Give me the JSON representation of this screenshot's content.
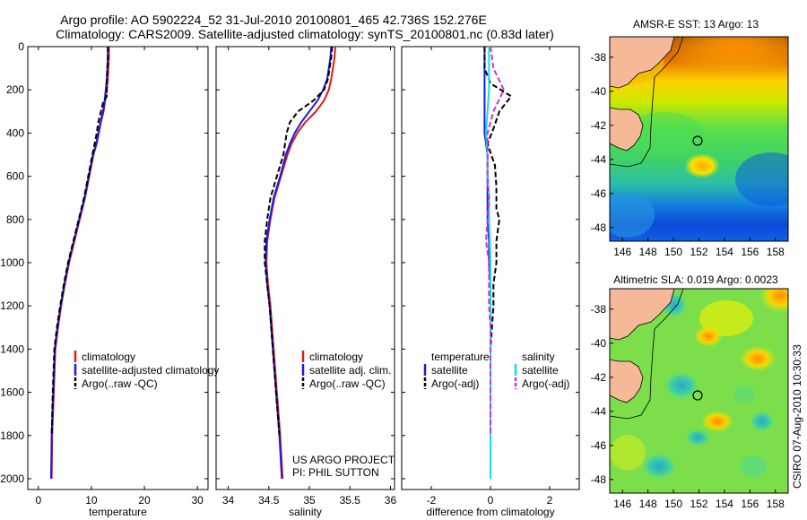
{
  "figure": {
    "title_line1": "Argo profile: AO 5902224_52 31-Jul-2010 20100801_465 42.736S 152.276E",
    "title_line2": "Climatology: CARS2009. Satellite-adjusted climatology: synTS_20100801.nc (0.83d later)",
    "side_stamp": "CSIRO 07-Aug-2010 10:30:33",
    "project_line1": "US ARGO PROJECT",
    "project_line2": "PI: PHIL SUTTON"
  },
  "colors": {
    "climatology": "#e01818",
    "satellite": "#1a1ae0",
    "argo": "#000000",
    "sal_satellite": "#14dcee",
    "sal_argo": "#cc33cc"
  },
  "chart_data": [
    {
      "type": "line",
      "xlabel": "temperature",
      "ylabel": "",
      "xlim": [
        -2,
        32
      ],
      "ylim": [
        0,
        2050
      ],
      "y_reversed": true,
      "xticks": [
        0,
        10,
        20,
        30
      ],
      "yticks": [
        0,
        200,
        400,
        600,
        800,
        1000,
        1200,
        1400,
        1600,
        1800,
        2000
      ],
      "legend": [
        "climatology",
        "satellite-adjusted climatology",
        "Argo(..raw -QC)"
      ],
      "series": [
        {
          "name": "climatology",
          "style": "solid",
          "color_key": "climatology",
          "x": [
            13.3,
            13.3,
            13.2,
            13.1,
            12.9,
            12.6,
            12.3,
            11.8,
            11.4,
            11.0,
            10.4,
            9.6,
            8.8,
            7.8,
            6.8,
            5.8,
            5.0,
            4.3,
            3.7,
            3.2,
            2.9,
            2.6,
            2.5
          ],
          "y": [
            0,
            50,
            100,
            150,
            200,
            250,
            300,
            350,
            400,
            450,
            500,
            600,
            700,
            800,
            900,
            1000,
            1100,
            1200,
            1300,
            1400,
            1600,
            1800,
            2000
          ]
        },
        {
          "name": "satellite-adjusted climatology",
          "style": "solid",
          "color_key": "satellite",
          "x": [
            13.1,
            13.1,
            13.0,
            12.9,
            12.7,
            12.5,
            12.2,
            11.7,
            11.3,
            10.9,
            10.3,
            9.5,
            8.7,
            7.7,
            6.7,
            5.7,
            4.9,
            4.2,
            3.6,
            3.1,
            2.8,
            2.5,
            2.4
          ],
          "y": [
            0,
            50,
            100,
            150,
            200,
            250,
            300,
            350,
            400,
            450,
            500,
            600,
            700,
            800,
            900,
            1000,
            1100,
            1200,
            1300,
            1400,
            1600,
            1800,
            2000
          ]
        },
        {
          "name": "Argo(..raw -QC)",
          "style": "dashed",
          "color_key": "argo",
          "x": [
            13.1,
            13.1,
            13.0,
            12.9,
            12.9,
            12.2,
            11.8,
            11.3,
            11.0,
            10.6,
            10.2,
            9.4,
            8.6,
            7.6,
            6.6,
            5.6,
            4.8,
            4.1,
            3.5,
            3.0,
            2.7,
            2.5
          ],
          "y": [
            0,
            50,
            100,
            150,
            230,
            260,
            300,
            350,
            400,
            450,
            500,
            600,
            700,
            800,
            900,
            1000,
            1100,
            1200,
            1300,
            1400,
            1600,
            1800
          ]
        }
      ]
    },
    {
      "type": "line",
      "xlabel": "salinity",
      "ylabel": "",
      "xlim": [
        33.85,
        36.05
      ],
      "ylim": [
        0,
        2050
      ],
      "y_reversed": true,
      "xticks": [
        34,
        34.5,
        35,
        35.5,
        36
      ],
      "yticks": [
        0,
        200,
        400,
        600,
        800,
        1000,
        1200,
        1400,
        1600,
        1800,
        2000
      ],
      "legend": [
        "climatology",
        "satellite adj. clim.",
        "Argo(..raw -QC)"
      ],
      "series": [
        {
          "name": "climatology",
          "style": "solid",
          "color_key": "climatology",
          "x": [
            35.32,
            35.31,
            35.29,
            35.27,
            35.24,
            35.18,
            35.08,
            34.95,
            34.85,
            34.78,
            34.73,
            34.65,
            34.57,
            34.52,
            34.48,
            34.47,
            34.49,
            34.52,
            34.54,
            34.56,
            34.6,
            34.64,
            34.67
          ],
          "y": [
            0,
            50,
            100,
            150,
            200,
            250,
            300,
            350,
            400,
            450,
            500,
            600,
            700,
            800,
            900,
            1000,
            1100,
            1200,
            1300,
            1400,
            1600,
            1800,
            2000
          ]
        },
        {
          "name": "satellite adj. clim.",
          "style": "solid",
          "color_key": "satellite",
          "x": [
            35.27,
            35.26,
            35.24,
            35.22,
            35.17,
            35.1,
            35.0,
            34.9,
            34.82,
            34.76,
            34.71,
            34.64,
            34.56,
            34.51,
            34.47,
            34.46,
            34.48,
            34.51,
            34.53,
            34.55,
            34.59,
            34.63,
            34.66
          ],
          "y": [
            0,
            50,
            100,
            150,
            200,
            250,
            300,
            350,
            400,
            450,
            500,
            600,
            700,
            800,
            900,
            1000,
            1100,
            1200,
            1300,
            1400,
            1600,
            1800,
            2000
          ]
        },
        {
          "name": "Argo(..raw -QC)",
          "style": "dashed",
          "color_key": "argo",
          "x": [
            35.28,
            35.27,
            35.25,
            35.23,
            35.18,
            35.05,
            34.86,
            34.76,
            34.72,
            34.7,
            34.68,
            34.6,
            34.52,
            34.48,
            34.45,
            34.45,
            34.48,
            34.51,
            34.53,
            34.55,
            34.59,
            34.63
          ],
          "y": [
            0,
            50,
            100,
            150,
            200,
            250,
            300,
            350,
            400,
            450,
            500,
            600,
            700,
            800,
            900,
            1000,
            1100,
            1200,
            1300,
            1400,
            1600,
            1800
          ]
        }
      ]
    },
    {
      "type": "line",
      "xlabel": "difference from climatology",
      "ylabel": "",
      "xlim": [
        -3.0,
        3.0
      ],
      "ylim": [
        0,
        2050
      ],
      "y_reversed": true,
      "xticks": [
        -2,
        0,
        2
      ],
      "yticks": [
        0,
        200,
        400,
        600,
        800,
        1000,
        1200,
        1400,
        1600,
        1800,
        2000
      ],
      "legend_temperature_header": "temperature",
      "legend_salinity_header": "salinity",
      "legend_temperature": [
        "satellite",
        "Argo(-adj)"
      ],
      "legend_salinity": [
        "satellite",
        "Argo(-adj)"
      ],
      "series": [
        {
          "name": "temperature satellite",
          "style": "solid",
          "color_key": "satellite",
          "x": [
            -0.2,
            -0.2,
            -0.2,
            -0.2,
            -0.2,
            -0.1,
            -0.1,
            -0.1,
            -0.1,
            -0.05,
            -0.05,
            0,
            0,
            0,
            0,
            0,
            0,
            0,
            0
          ],
          "y": [
            0,
            100,
            200,
            300,
            400,
            500,
            600,
            700,
            800,
            900,
            1000,
            1100,
            1200,
            1300,
            1400,
            1500,
            1600,
            1800,
            2000
          ]
        },
        {
          "name": "temperature Argo(-adj)",
          "style": "dashed",
          "color_key": "argo",
          "x": [
            -0.2,
            -0.2,
            0.0,
            0.7,
            0.3,
            0.1,
            -0.1,
            0.15,
            0.2,
            0.2,
            0.3,
            0.2,
            0.2,
            0.1,
            0.1,
            0.0,
            0.0,
            0.0
          ],
          "y": [
            0,
            100,
            170,
            230,
            300,
            380,
            450,
            550,
            650,
            750,
            800,
            900,
            1000,
            1100,
            1200,
            1400,
            1600,
            1800
          ]
        },
        {
          "name": "salinity satellite",
          "style": "solid",
          "color_key": "sal_satellite",
          "x": [
            -0.05,
            -0.05,
            -0.05,
            -0.1,
            -0.15,
            -0.1,
            -0.1,
            -0.05,
            -0.05,
            -0.02,
            0,
            0,
            0,
            0,
            0,
            0,
            0
          ],
          "y": [
            0,
            100,
            200,
            300,
            400,
            500,
            600,
            700,
            800,
            900,
            1000,
            1100,
            1200,
            1400,
            1600,
            1800,
            2000
          ]
        },
        {
          "name": "salinity Argo(-adj)",
          "style": "dashed",
          "color_key": "sal_argo",
          "x": [
            0,
            0.1,
            0.45,
            0.1,
            -0.1,
            -0.1,
            -0.1,
            -0.05,
            -0.1,
            -0.15,
            -0.05,
            -0.05,
            -0.05,
            0.0,
            0.0,
            0.0,
            0.0
          ],
          "y": [
            0,
            100,
            200,
            300,
            400,
            500,
            600,
            700,
            800,
            900,
            1000,
            1100,
            1200,
            1300,
            1400,
            1600,
            1800
          ]
        }
      ]
    },
    {
      "type": "heatmap",
      "title": "AMSR-E SST: 13 Argo: 13",
      "xlim": [
        145,
        159
      ],
      "ylim": [
        -48.8,
        -36.8
      ],
      "xticks": [
        146,
        148,
        150,
        152,
        154,
        156,
        158
      ],
      "yticks": [
        -38,
        -40,
        -42,
        -44,
        -46,
        -48
      ],
      "profile_marker": {
        "lon": 152.276,
        "lat": -42.736
      }
    },
    {
      "type": "heatmap",
      "title": "Altimetric SLA: 0.019 Argo: 0.0023",
      "xlim": [
        145,
        159
      ],
      "ylim": [
        -48.8,
        -36.8
      ],
      "xticks": [
        146,
        148,
        150,
        152,
        154,
        156,
        158
      ],
      "yticks": [
        -38,
        -40,
        -42,
        -44,
        -46,
        -48
      ],
      "profile_marker": {
        "lon": 152.276,
        "lat": -42.736
      }
    }
  ]
}
